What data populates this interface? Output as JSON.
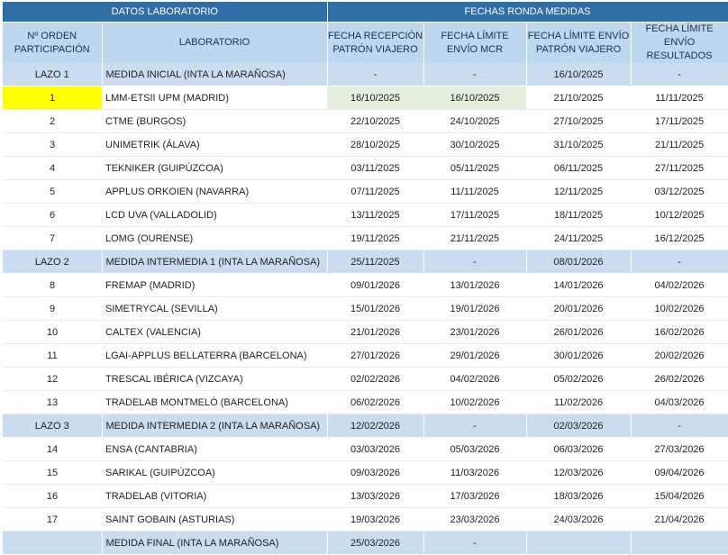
{
  "header": {
    "group_left": "DATOS LABORATORIO",
    "group_right": "FECHAS RONDA MEDIDAS",
    "columns": [
      "Nº ORDEN\nPARTICIPACIÓN",
      "LABORATORIO",
      "FECHA RECEPCIÓN\nPATRÓN VIAJERO",
      "FECHA LÍMITE\nENVÍO MCR",
      "FECHA LÍMITE ENVÍO\nPATRÓN VIAJERO",
      "FECHA LÍMITE\nENVÍO RESULTADOS"
    ]
  },
  "sections": [
    {
      "summary": {
        "n": "LAZO 1",
        "lab": "MEDIDA INICIAL (INTA LA MARAÑOSA)",
        "recepcion": "-",
        "mcr": "-",
        "envio": "16/10/2025",
        "resultados": "-"
      },
      "rows": [
        {
          "n": "1",
          "lab": "LMM-ETSII UPM (MADRID)",
          "recepcion": "16/10/2025",
          "mcr": "16/10/2025",
          "envio": "21/10/2025",
          "resultados": "11/11/2025"
        },
        {
          "n": "2",
          "lab": "CTME (BURGOS)",
          "recepcion": "22/10/2025",
          "mcr": "24/10/2025",
          "envio": "27/10/2025",
          "resultados": "17/11/2025"
        },
        {
          "n": "3",
          "lab": "UNIMETRIK (ÁLAVA)",
          "recepcion": "28/10/2025",
          "mcr": "30/10/2025",
          "envio": "31/10/2025",
          "resultados": "21/11/2025"
        },
        {
          "n": "4",
          "lab": "TEKNIKER (GUIPÚZCOA)",
          "recepcion": "03/11/2025",
          "mcr": "05/11/2025",
          "envio": "06/11/2025",
          "resultados": "27/11/2025"
        },
        {
          "n": "5",
          "lab": "APPLUS ORKOIEN (NAVARRA)",
          "recepcion": "07/11/2025",
          "mcr": "11/11/2025",
          "envio": "12/11/2025",
          "resultados": "03/12/2025"
        },
        {
          "n": "6",
          "lab": "LCD UVA (VALLADOLID)",
          "recepcion": "13/11/2025",
          "mcr": "17/11/2025",
          "envio": "18/11/2025",
          "resultados": "10/12/2025"
        },
        {
          "n": "7",
          "lab": "LOMG (OURENSE)",
          "recepcion": "19/11/2025",
          "mcr": "21/11/2025",
          "envio": "24/11/2025",
          "resultados": "16/12/2025"
        }
      ]
    },
    {
      "summary": {
        "n": "LAZO 2",
        "lab": "MEDIDA INTERMEDIA 1 (INTA LA MARAÑOSA)",
        "recepcion": "25/11/2025",
        "mcr": "-",
        "envio": "08/01/2026",
        "resultados": "-"
      },
      "rows": [
        {
          "n": "8",
          "lab": "FREMAP (MADRID)",
          "recepcion": "09/01/2026",
          "mcr": "13/01/2026",
          "envio": "14/01/2026",
          "resultados": "04/02/2026"
        },
        {
          "n": "9",
          "lab": "SIMETRYCAL (SEVILLA)",
          "recepcion": "15/01/2026",
          "mcr": "19/01/2026",
          "envio": "20/01/2026",
          "resultados": "10/02/2026"
        },
        {
          "n": "10",
          "lab": "CALTEX (VALENCIA)",
          "recepcion": "21/01/2026",
          "mcr": "23/01/2026",
          "envio": "26/01/2026",
          "resultados": "16/02/2026"
        },
        {
          "n": "11",
          "lab": "LGAI-APPLUS BELLATERRA (BARCELONA)",
          "recepcion": "27/01/2026",
          "mcr": "29/01/2026",
          "envio": "30/01/2026",
          "resultados": "20/02/2026"
        },
        {
          "n": "12",
          "lab": "TRESCAL IBÉRICA (VIZCAYA)",
          "recepcion": "02/02/2026",
          "mcr": "04/02/2026",
          "envio": "05/02/2026",
          "resultados": "26/02/2026"
        },
        {
          "n": "13",
          "lab": "TRADELAB MONTMELÓ (BARCELONA)",
          "recepcion": "06/02/2026",
          "mcr": "10/02/2026",
          "envio": "11/02/2026",
          "resultados": "04/03/2026"
        }
      ]
    },
    {
      "summary": {
        "n": "LAZO 3",
        "lab": "MEDIDA INTERMEDIA 2 (INTA LA MARAÑOSA)",
        "recepcion": "12/02/2026",
        "mcr": "-",
        "envio": "02/03/2026",
        "resultados": "-"
      },
      "rows": [
        {
          "n": "14",
          "lab": "ENSA (CANTABRIA)",
          "recepcion": "03/03/2026",
          "mcr": "05/03/2026",
          "envio": "06/03/2026",
          "resultados": "27/03/2026"
        },
        {
          "n": "15",
          "lab": "SARIKAL (GUIPÚZCOA)",
          "recepcion": "09/03/2026",
          "mcr": "11/03/2026",
          "envio": "12/03/2026",
          "resultados": "09/04/2026"
        },
        {
          "n": "16",
          "lab": "TRADELAB (VITORIA)",
          "recepcion": "13/03/2026",
          "mcr": "17/03/2026",
          "envio": "18/03/2026",
          "resultados": "15/04/2026"
        },
        {
          "n": "17",
          "lab": "SAINT GOBAIN (ASTURIAS)",
          "recepcion": "19/03/2026",
          "mcr": "23/03/2026",
          "envio": "24/03/2026",
          "resultados": "21/04/2026"
        }
      ]
    }
  ],
  "final": {
    "lab": "MEDIDA FINAL (INTA LA MARAÑOSA)",
    "recepcion": "25/03/2026",
    "mcr": "-"
  }
}
